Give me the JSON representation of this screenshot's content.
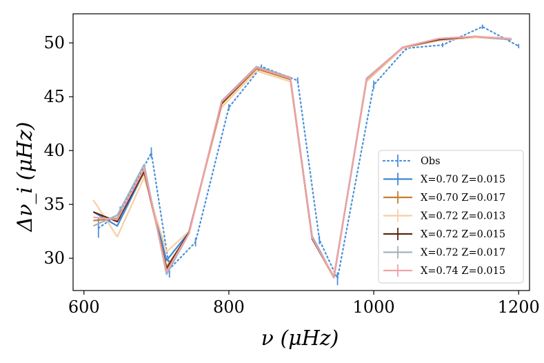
{
  "chart_data": {
    "type": "line",
    "title": "",
    "xlabel": "ν  (μHz)",
    "ylabel": "Δν_i  (μHz)",
    "xlim": [
      585,
      1215
    ],
    "ylim": [
      27,
      52.7
    ],
    "xticks": [
      600,
      800,
      1000,
      1200
    ],
    "yticks": [
      30,
      35,
      40,
      45,
      50
    ],
    "xtick_labels": [
      "600",
      "800",
      "1000",
      "1200"
    ],
    "ytick_labels": [
      "30",
      "35",
      "40",
      "45",
      "50"
    ],
    "grid": false,
    "legend_position": "lower-right",
    "series": [
      {
        "name": "Obs",
        "color": "#4a90d9",
        "style": "dotted",
        "x": [
          620,
          650,
          693,
          718,
          754,
          800,
          845,
          895,
          925,
          950,
          1000,
          1045,
          1095,
          1150,
          1200
        ],
        "y": [
          32.8,
          34.2,
          39.8,
          29.0,
          31.5,
          44.0,
          47.8,
          46.5,
          31.7,
          28.1,
          46.1,
          49.5,
          49.8,
          51.5,
          49.7
        ],
        "err": [
          0.9,
          0.6,
          0.5,
          0.8,
          0.4,
          0.3,
          0.2,
          0.3,
          0.4,
          0.6,
          0.4,
          0.2,
          0.2,
          0.2,
          0.2
        ]
      },
      {
        "name": "X=0.70 Z=0.015",
        "color": "#3f88d4",
        "x": [
          613,
          646,
          683,
          714,
          745,
          790,
          838,
          885,
          915,
          945,
          990,
          1040,
          1090,
          1140,
          1190
        ],
        "y": [
          34.3,
          33.0,
          38.0,
          29.8,
          32.4,
          44.4,
          47.7,
          46.7,
          32.0,
          28.3,
          46.5,
          49.6,
          50.3,
          50.6,
          50.3
        ]
      },
      {
        "name": "X=0.70 Z=0.017",
        "color": "#c47f2e",
        "x": [
          613,
          646,
          683,
          714,
          745,
          790,
          838,
          885,
          915,
          945,
          990,
          1040,
          1090,
          1140,
          1190
        ],
        "y": [
          33.5,
          33.7,
          37.9,
          29.2,
          32.3,
          44.3,
          47.6,
          46.6,
          31.9,
          28.2,
          46.6,
          49.5,
          50.3,
          50.6,
          50.3
        ]
      },
      {
        "name": "X=0.72 Z=0.013",
        "color": "#f7cfa3",
        "x": [
          613,
          646,
          683,
          714,
          745,
          790,
          838,
          885,
          915,
          945,
          990,
          1040,
          1090,
          1140,
          1190
        ],
        "y": [
          35.4,
          32.0,
          37.5,
          30.6,
          32.5,
          44.0,
          47.4,
          46.4,
          31.8,
          28.4,
          46.4,
          49.5,
          50.2,
          50.5,
          50.3
        ]
      },
      {
        "name": "X=0.72 Z=0.015",
        "color": "#5a2413",
        "x": [
          613,
          646,
          683,
          714,
          745,
          790,
          838,
          885,
          915,
          945,
          990,
          1040,
          1090,
          1140,
          1190
        ],
        "y": [
          34.3,
          33.4,
          38.1,
          29.0,
          32.4,
          44.4,
          47.7,
          46.7,
          31.8,
          28.2,
          46.6,
          49.6,
          50.3,
          50.6,
          50.3
        ]
      },
      {
        "name": "X=0.72 Z=0.017",
        "color": "#a4b0bd",
        "x": [
          613,
          646,
          683,
          714,
          745,
          790,
          838,
          885,
          915,
          945,
          990,
          1040,
          1090,
          1140,
          1190
        ],
        "y": [
          33.0,
          34.0,
          38.7,
          28.5,
          32.3,
          44.6,
          47.8,
          46.8,
          31.9,
          28.2,
          46.7,
          49.6,
          50.4,
          50.6,
          50.3
        ]
      },
      {
        "name": "X=0.74 Z=0.015",
        "color": "#f0a2a6",
        "x": [
          613,
          646,
          683,
          714,
          745,
          790,
          838,
          885,
          915,
          945,
          990,
          1040,
          1090,
          1140,
          1190
        ],
        "y": [
          33.8,
          33.6,
          38.3,
          28.8,
          32.3,
          44.5,
          47.7,
          46.7,
          31.9,
          28.2,
          46.6,
          49.6,
          50.4,
          50.6,
          50.4
        ]
      }
    ]
  }
}
